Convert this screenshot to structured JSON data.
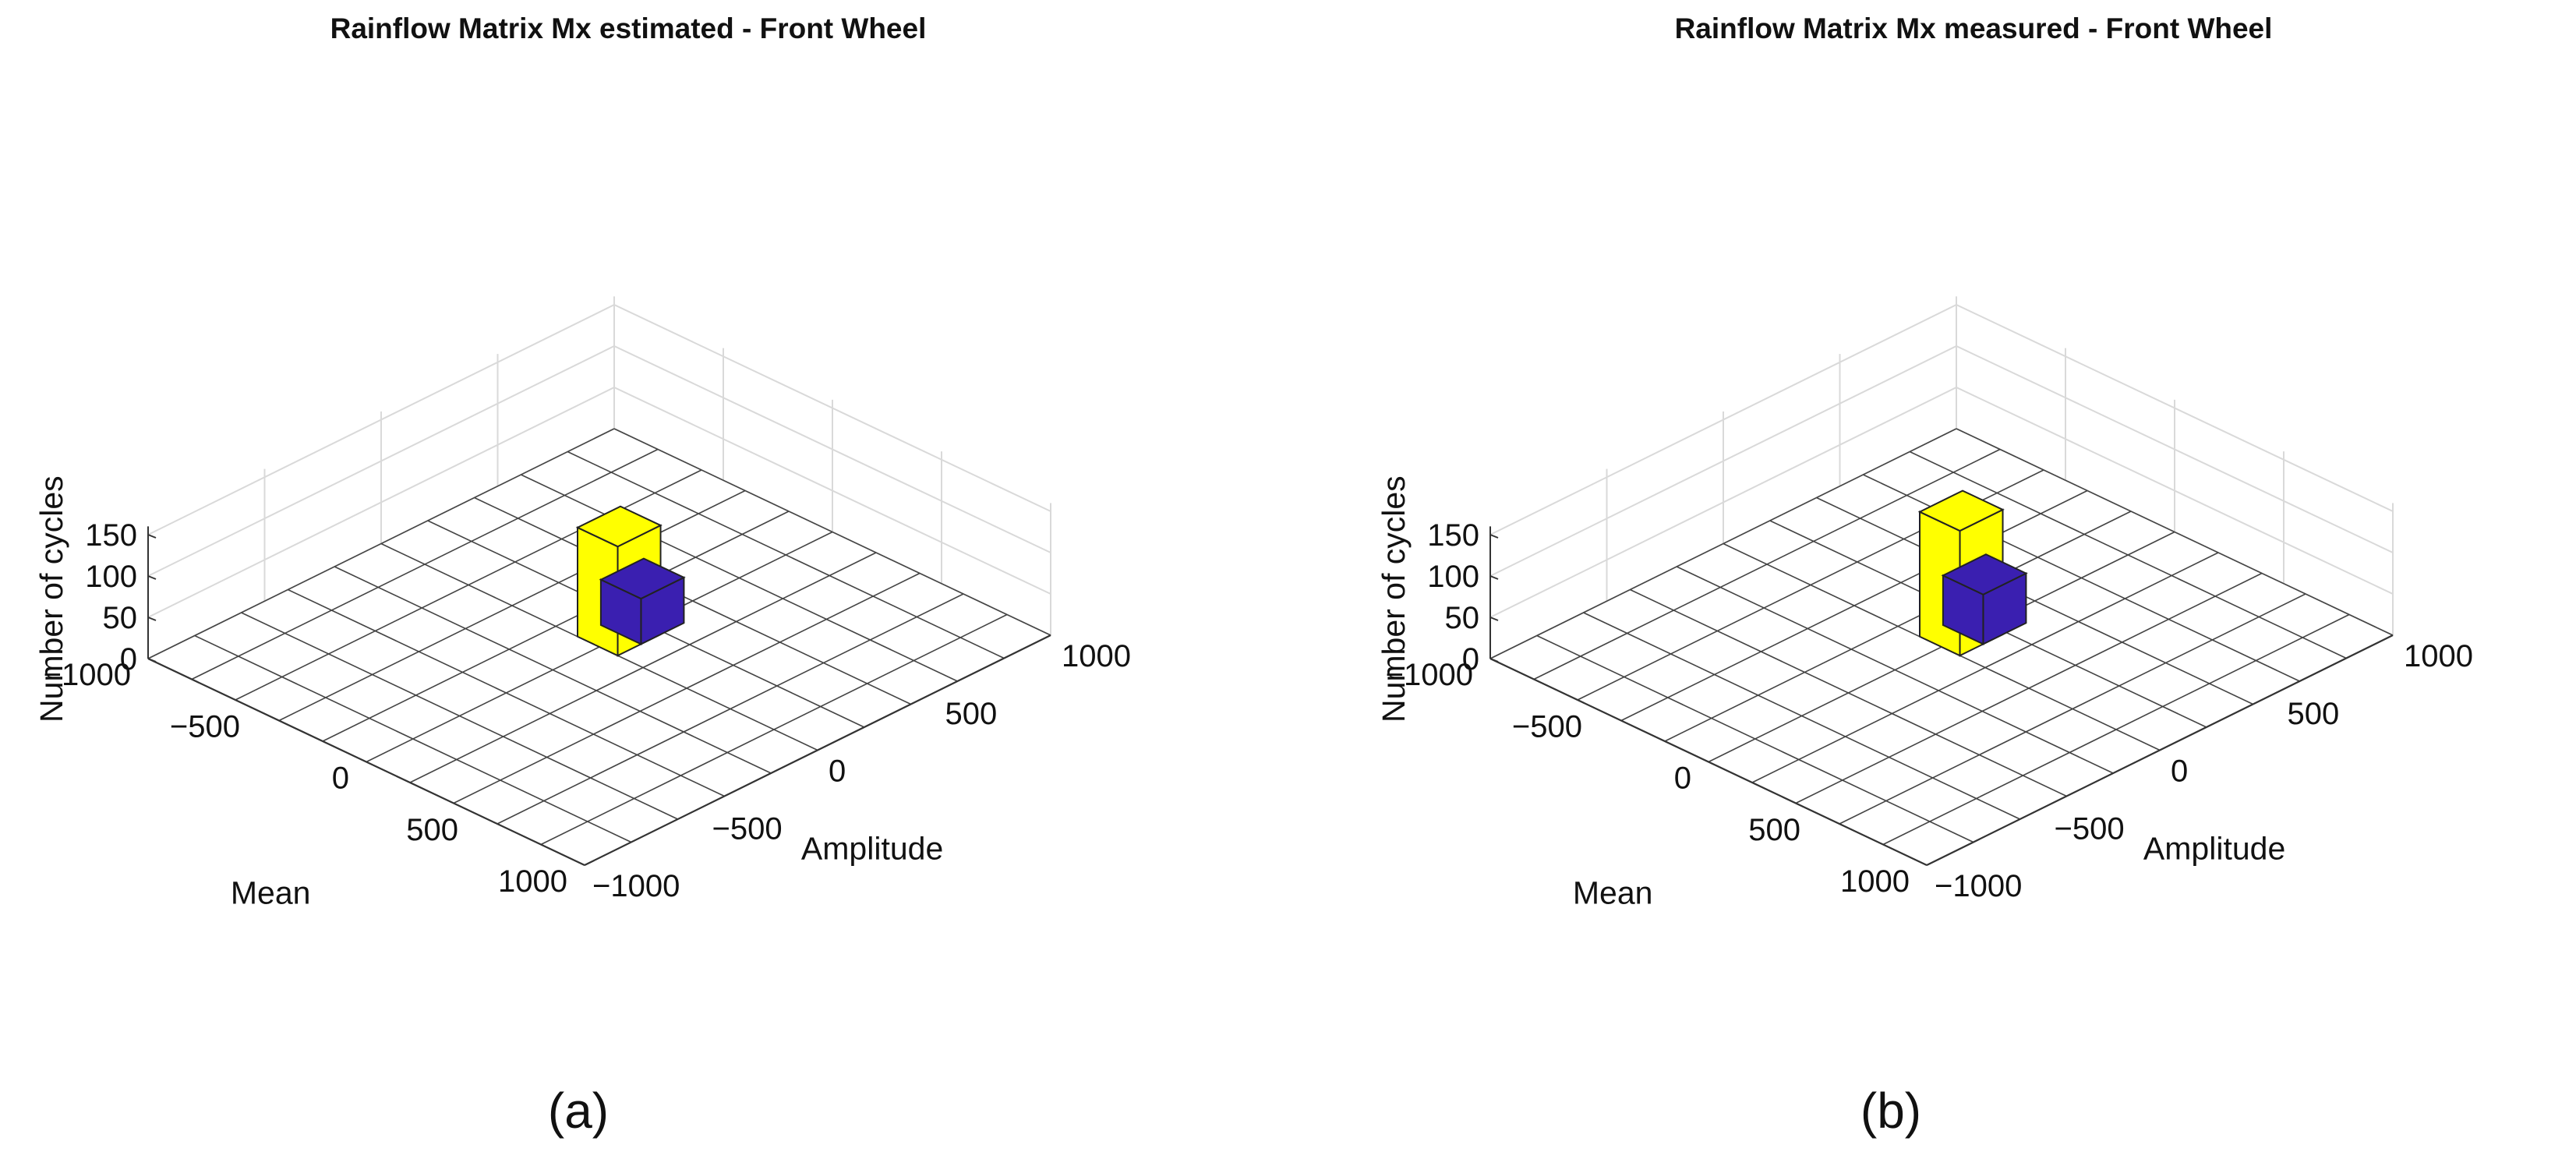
{
  "panels": [
    {
      "caption": "(a)"
    },
    {
      "caption": "(b)"
    }
  ],
  "colors": {
    "bar_high": "#ffff00",
    "bar_low": "#3a1fb0",
    "grid": "#d9d9d9",
    "floor_grid": "#444444"
  },
  "chart_data": [
    {
      "type": "bar3d",
      "title": "Rainflow Matrix Mx estimated - Front Wheel",
      "xlabel": "Mean",
      "ylabel": "Amplitude",
      "zlabel": "Number of cycles",
      "xlim": [
        -1000,
        1000
      ],
      "ylim": [
        -1000,
        1000
      ],
      "zlim": [
        0,
        150
      ],
      "x_ticks": [
        "-1000",
        "-500",
        "0",
        "500",
        "1000"
      ],
      "y_ticks": [
        "-1000",
        "-500",
        "0",
        "500",
        "1000"
      ],
      "z_ticks": [
        "0",
        "50",
        "100",
        "150"
      ],
      "grid": true,
      "bars": [
        {
          "mean": -100,
          "amplitude": 0,
          "cycles": 132,
          "color": "#ffff00"
        },
        {
          "mean": -100,
          "amplitude": 100,
          "cycles": 55,
          "color": "#3a1fb0"
        }
      ]
    },
    {
      "type": "bar3d",
      "title": "Rainflow Matrix Mx measured - Front Wheel",
      "xlabel": "Mean",
      "ylabel": "Amplitude",
      "zlabel": "Number of cycles",
      "xlim": [
        -1000,
        1000
      ],
      "ylim": [
        -1000,
        1000
      ],
      "zlim": [
        0,
        150
      ],
      "x_ticks": [
        "-1000",
        "-500",
        "0",
        "500",
        "1000"
      ],
      "y_ticks": [
        "-1000",
        "-500",
        "0",
        "500",
        "1000"
      ],
      "z_ticks": [
        "0",
        "50",
        "100",
        "150"
      ],
      "grid": true,
      "bars": [
        {
          "mean": -100,
          "amplitude": 0,
          "cycles": 151,
          "color": "#ffff00"
        },
        {
          "mean": -100,
          "amplitude": 100,
          "cycles": 60,
          "color": "#3a1fb0"
        }
      ]
    }
  ]
}
